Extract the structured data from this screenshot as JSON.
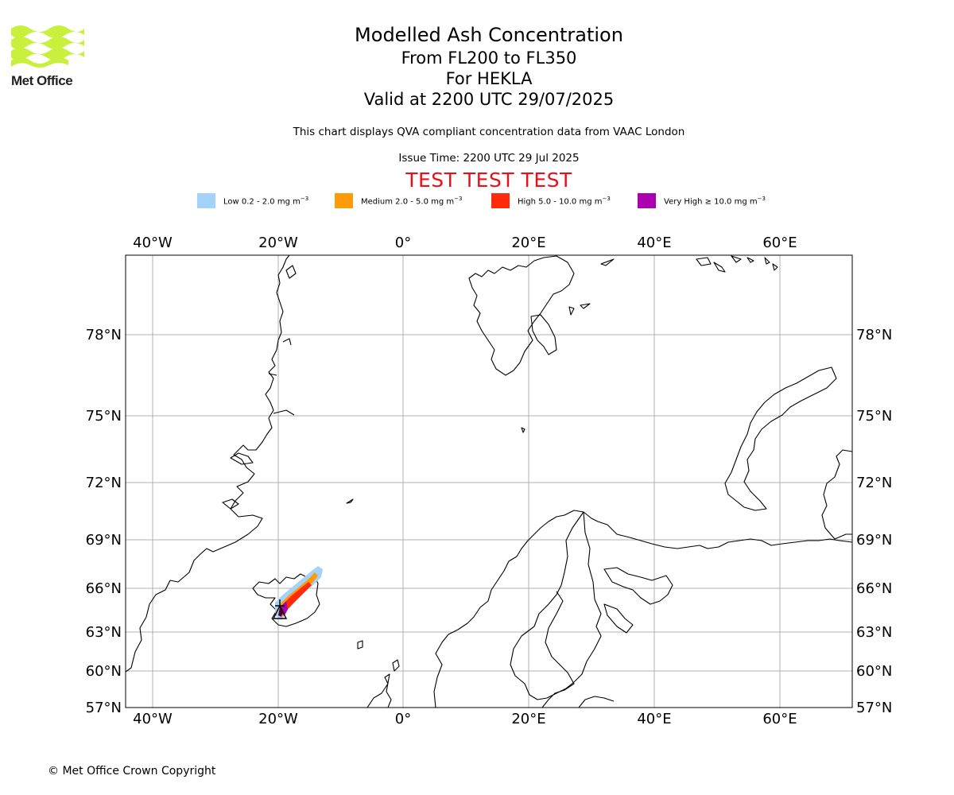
{
  "logo": {
    "text": "Met Office",
    "color": "#c8f03c"
  },
  "title": {
    "main": "Modelled Ash Concentration",
    "levels": "From FL200 to FL350",
    "volcano": "For HEKLA",
    "valid": "Valid at 2200 UTC 29/07/2025"
  },
  "subtitle": "This chart displays QVA compliant concentration data from VAAC London",
  "issue_time": "Issue Time: 2200 UTC 29 Jul 2025",
  "test_banner": "TEST TEST TEST",
  "legend": [
    {
      "label": "Low 0.2 - 2.0 mg m",
      "color": "#a3d3fa"
    },
    {
      "label": "Medium 2.0 - 5.0 mg m",
      "color": "#ff9a0a"
    },
    {
      "label": "High 5.0 - 10.0 mg m",
      "color": "#ff2a0a"
    },
    {
      "label": "Very High ≥ 10.0 mg m",
      "color": "#ab00b0"
    }
  ],
  "legend_unit_exponent": "−3",
  "axes": {
    "lon_ticks": [
      "40°W",
      "20°W",
      "0°",
      "20°E",
      "40°E",
      "60°E"
    ],
    "lat_ticks": [
      "78°N",
      "75°N",
      "72°N",
      "69°N",
      "66°N",
      "63°N",
      "60°N",
      "57°N"
    ]
  },
  "copyright": "© Met Office Crown Copyright"
}
